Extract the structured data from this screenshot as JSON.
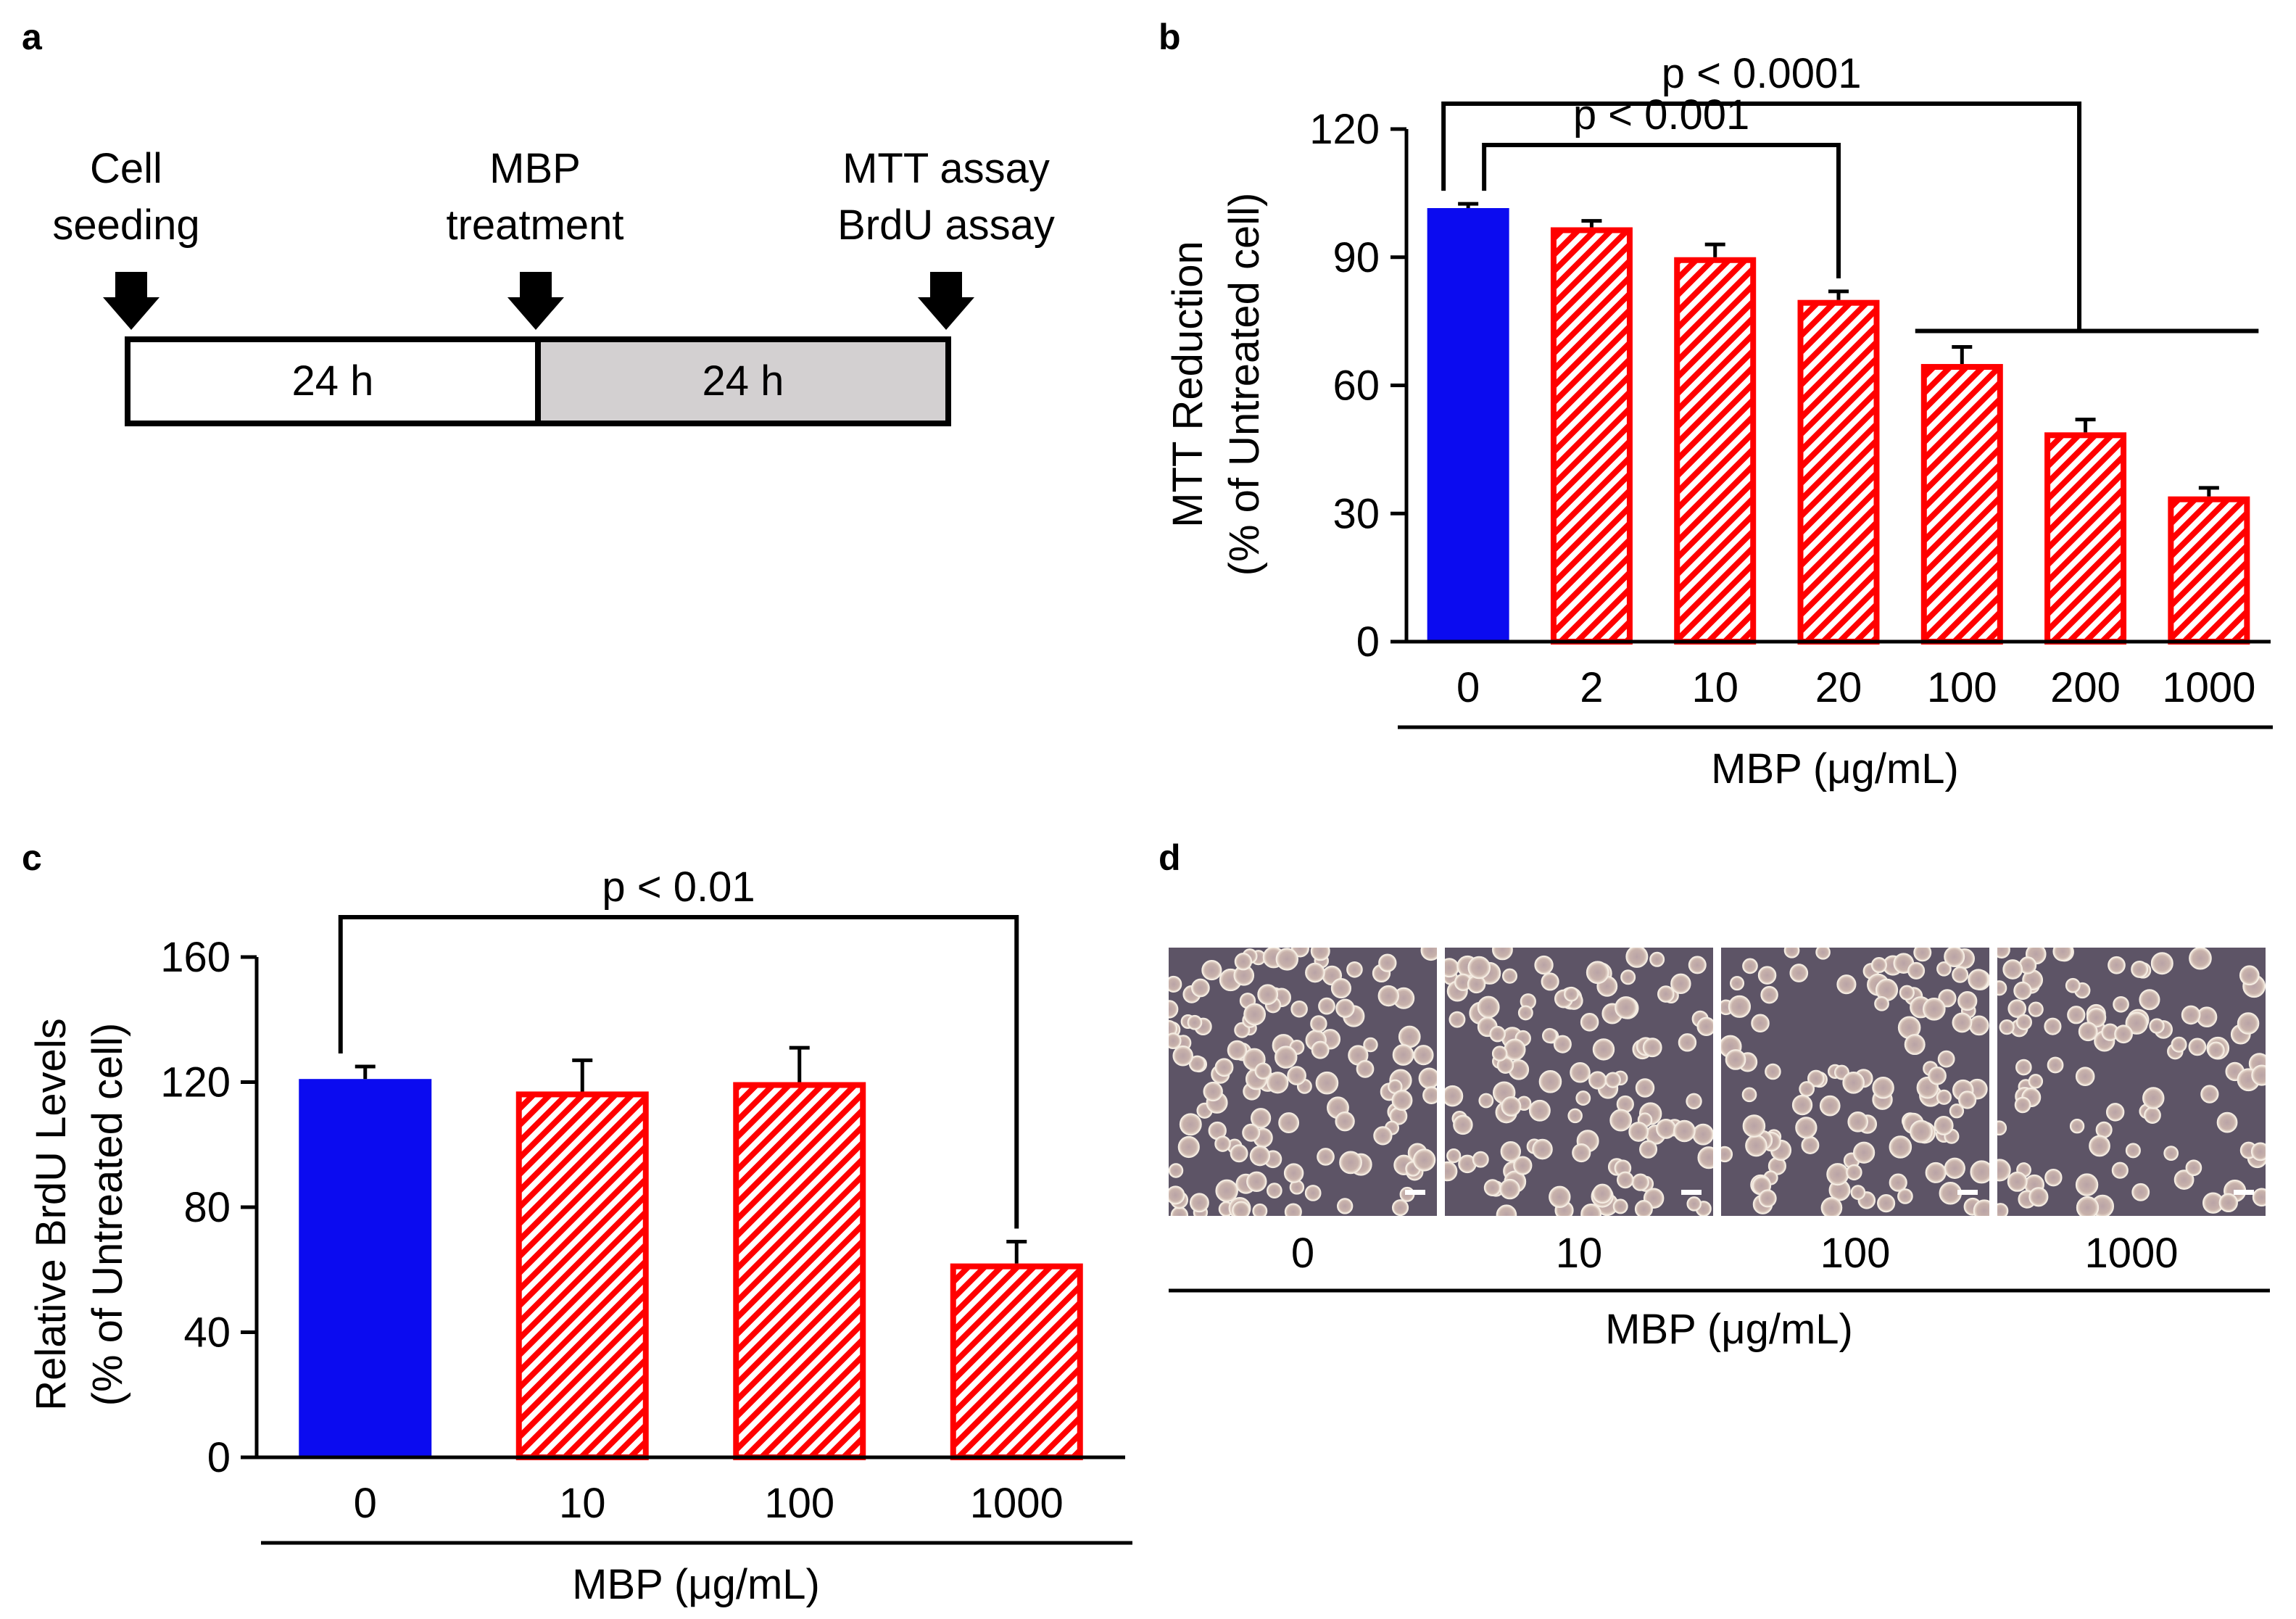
{
  "colors": {
    "control": "#0b0bf0",
    "treated": "#ff0000",
    "treated_stripe_bg": "#ffffff",
    "timeline_second_fill": "#d3d0d1",
    "micrograph_bg": "#5d5466",
    "cell_color": "#cdb7b0"
  },
  "panel_a": {
    "letter": "a",
    "events": [
      {
        "lines": [
          "Cell",
          "seeding"
        ],
        "icon": "down-arrow-icon"
      },
      {
        "lines": [
          "MBP",
          "treatment"
        ],
        "icon": "down-arrow-icon"
      },
      {
        "lines": [
          "MTT assay",
          "BrdU assay"
        ],
        "icon": "down-arrow-icon"
      }
    ],
    "periods": [
      {
        "label": "24 h"
      },
      {
        "label": "24 h"
      }
    ]
  },
  "panel_b": {
    "letter": "b"
  },
  "panel_c": {
    "letter": "c"
  },
  "panel_d": {
    "letter": "d",
    "concentrations": [
      "0",
      "10",
      "100",
      "1000"
    ],
    "xlabel": "MBP (μg/mL)",
    "image_description": "Phase-contrast micrographs of cells at increasing MBP concentration, with white scale bars"
  },
  "chart_data": [
    {
      "panel": "b",
      "type": "bar",
      "categories": [
        "0",
        "2",
        "10",
        "20",
        "100",
        "200",
        "1000"
      ],
      "values": [
        101.5,
        97,
        90,
        80,
        65,
        49,
        34
      ],
      "errors": [
        1,
        1.5,
        3,
        2,
        4,
        3,
        2
      ],
      "bar_roles": [
        "control",
        "treated",
        "treated",
        "treated",
        "treated",
        "treated",
        "treated"
      ],
      "title": "",
      "xlabel": "MBP (μg/mL)",
      "ylabel_lines": [
        "MTT Reduction",
        "(% of Untreated cell)"
      ],
      "ylim": [
        0,
        120
      ],
      "yticks": [
        0,
        30,
        60,
        90,
        120
      ],
      "annotations": [
        {
          "text": "p < 0.0001",
          "from": "0",
          "to": [
            "100",
            "200",
            "1000"
          ]
        },
        {
          "text": "p < 0.001",
          "from": "0",
          "to": [
            "20"
          ]
        }
      ]
    },
    {
      "panel": "c",
      "type": "bar",
      "categories": [
        "0",
        "10",
        "100",
        "1000"
      ],
      "values": [
        121,
        117,
        120,
        62
      ],
      "errors": [
        4,
        10,
        11,
        7
      ],
      "bar_roles": [
        "control",
        "treated",
        "treated",
        "treated"
      ],
      "title": "",
      "xlabel": "MBP (μg/mL)",
      "ylabel_lines": [
        "Relative BrdU Levels",
        "(% of Untreated cell)"
      ],
      "ylim": [
        0,
        160
      ],
      "yticks": [
        0,
        40,
        80,
        120,
        160
      ],
      "annotations": [
        {
          "text": "p < 0.01",
          "from": "0",
          "to": [
            "1000"
          ]
        }
      ]
    }
  ]
}
